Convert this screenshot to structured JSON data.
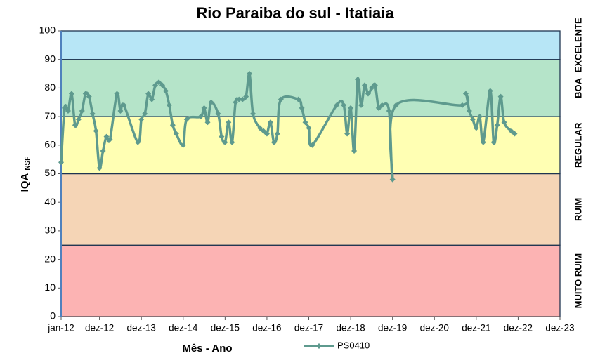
{
  "chart_data": {
    "type": "line",
    "title": "Rio Paraiba do sul - Itatiaia",
    "xlabel": "Mês - Ano",
    "ylabel": "IQA",
    "ylabel_sub": "NSF",
    "xlim": [
      "2012-01",
      "2023-12"
    ],
    "xticks": [
      {
        "value": "2012-01",
        "label": "jan-12"
      },
      {
        "value": "2012-12",
        "label": "dez-12"
      },
      {
        "value": "2013-12",
        "label": "dez-13"
      },
      {
        "value": "2014-12",
        "label": "dez-14"
      },
      {
        "value": "2015-12",
        "label": "dez-15"
      },
      {
        "value": "2016-12",
        "label": "dez-16"
      },
      {
        "value": "2017-12",
        "label": "dez-17"
      },
      {
        "value": "2018-12",
        "label": "dez-18"
      },
      {
        "value": "2019-12",
        "label": "dez-19"
      },
      {
        "value": "2020-12",
        "label": "dez-20"
      },
      {
        "value": "2021-12",
        "label": "dez-21"
      },
      {
        "value": "2022-12",
        "label": "dez-22"
      },
      {
        "value": "2023-12",
        "label": "dez-23"
      }
    ],
    "ylim": [
      0,
      100
    ],
    "yticks": [
      0,
      10,
      20,
      30,
      40,
      50,
      60,
      70,
      80,
      90,
      100
    ],
    "bands": [
      {
        "label": "MUITO RUIM",
        "from": 0,
        "to": 25,
        "color": "#fcb3b3"
      },
      {
        "label": "RUIM",
        "from": 25,
        "to": 50,
        "color": "#f5d5b6"
      },
      {
        "label": "REGULAR",
        "from": 50,
        "to": 70,
        "color": "#ffffb3"
      },
      {
        "label": "BOA",
        "from": 70,
        "to": 90,
        "color": "#b5e4c9"
      },
      {
        "label": "EXCELENTE",
        "from": 90,
        "to": 100,
        "color": "#b7e6f6"
      }
    ],
    "legend": "bottom",
    "series": [
      {
        "name": "PS0410",
        "color": "#5e9a8e",
        "x": [
          "2012-01",
          "2012-02",
          "2012-03",
          "2012-04",
          "2012-05",
          "2012-06",
          "2012-07",
          "2012-08",
          "2012-09",
          "2012-10",
          "2012-11",
          "2012-12",
          "2013-01",
          "2013-02",
          "2013-03",
          "2013-05",
          "2013-06",
          "2013-07",
          "2013-11",
          "2013-12",
          "2014-01",
          "2014-02",
          "2014-03",
          "2014-04",
          "2014-05",
          "2014-06",
          "2014-07",
          "2014-08",
          "2014-09",
          "2014-10",
          "2014-12",
          "2015-01",
          "2015-05",
          "2015-06",
          "2015-07",
          "2015-08",
          "2015-10",
          "2015-11",
          "2015-12",
          "2016-01",
          "2016-02",
          "2016-03",
          "2016-04",
          "2016-05",
          "2016-06",
          "2016-07",
          "2016-08",
          "2016-10",
          "2016-11",
          "2016-12",
          "2017-01",
          "2017-02",
          "2017-03",
          "2017-04",
          "2017-09",
          "2017-10",
          "2017-11",
          "2017-12",
          "2018-01",
          "2018-08",
          "2018-10",
          "2018-11",
          "2018-12",
          "2019-01",
          "2019-02",
          "2019-03",
          "2019-04",
          "2019-05",
          "2019-06",
          "2019-07",
          "2019-08",
          "2019-09",
          "2019-11",
          "2019-12",
          "2020-01",
          "2021-08",
          "2021-09",
          "2021-10",
          "2021-11",
          "2021-12",
          "2022-01",
          "2022-02",
          "2022-04",
          "2022-05",
          "2022-06",
          "2022-07",
          "2022-08",
          "2022-10",
          "2022-11"
        ],
        "values": [
          54,
          73,
          72,
          78,
          67,
          69,
          72,
          78,
          77,
          71,
          65,
          52,
          58,
          63,
          62,
          78,
          72,
          74,
          61,
          69,
          71,
          78,
          76,
          81,
          82,
          81,
          79,
          74,
          67,
          64,
          60,
          69,
          70,
          73,
          68,
          75,
          71,
          63,
          61,
          68,
          61,
          75,
          76,
          76,
          77,
          85,
          71,
          66,
          65,
          64,
          68,
          61,
          64,
          76,
          76,
          73,
          68,
          66,
          60,
          74,
          74,
          64,
          73,
          58,
          83,
          74,
          81,
          78,
          80,
          81,
          73,
          74,
          72,
          48,
          74,
          74,
          78,
          72,
          69,
          66,
          70,
          61,
          79,
          61,
          67,
          77,
          68,
          65,
          64
        ]
      }
    ]
  }
}
